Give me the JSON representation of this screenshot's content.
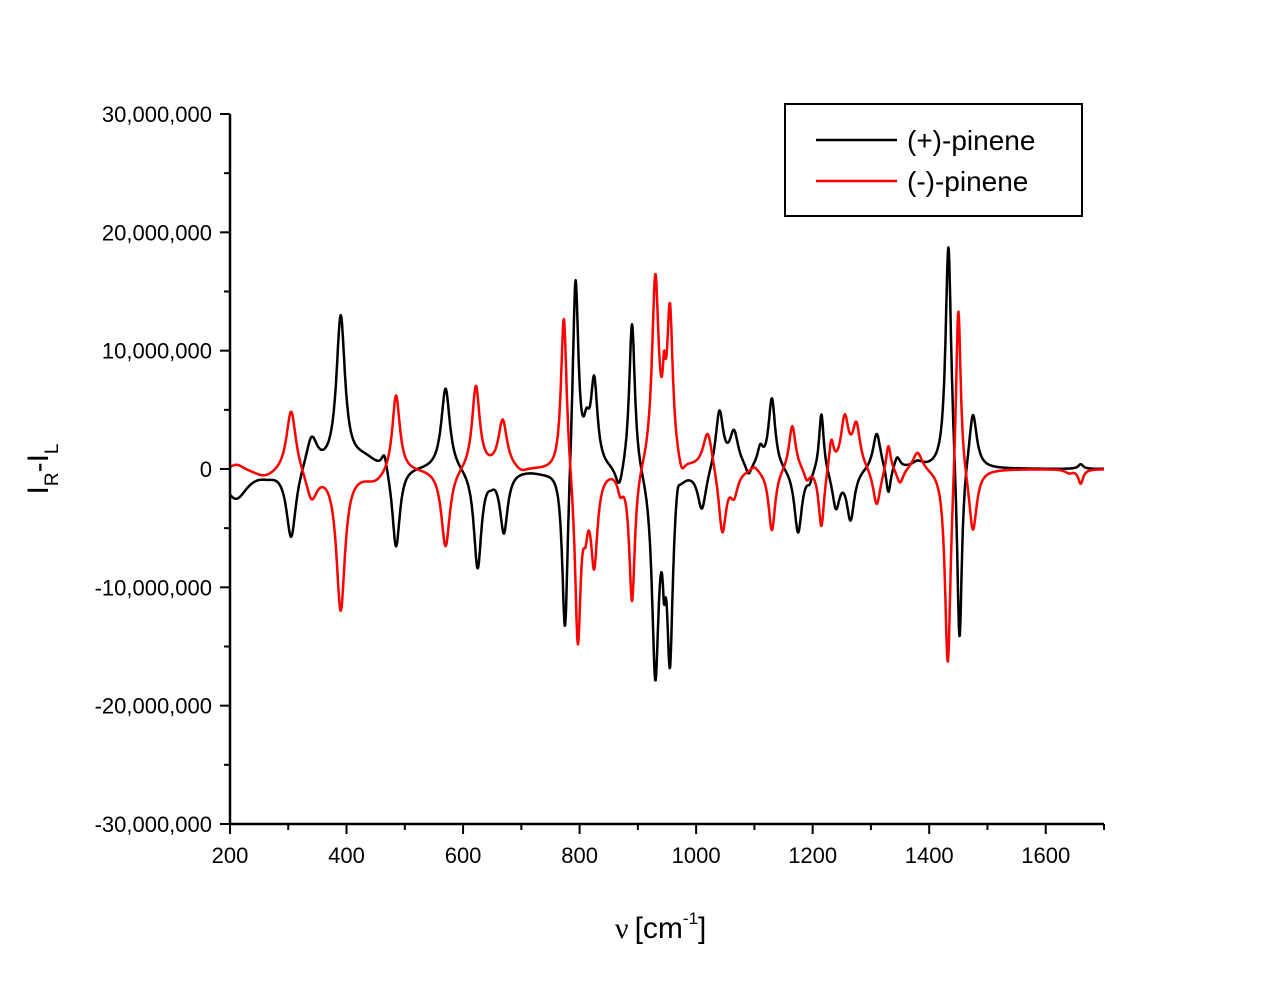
{
  "chart_data": {
    "type": "line",
    "title": "",
    "xlabel": "ν [cm⁻¹]",
    "xlabel_parts": {
      "symbol": "ν",
      "unit_open": "[cm",
      "unit_sup": "-1",
      "unit_close": "]"
    },
    "ylabel": "I_R - I_L",
    "ylabel_parts": {
      "main1": "I",
      "sub1": "R",
      "dash": "-",
      "main2": "I",
      "sub2": "L"
    },
    "xlim": [
      200,
      1700
    ],
    "ylim": [
      -30000000,
      30000000
    ],
    "x_ticks": [
      200,
      400,
      600,
      800,
      1000,
      1200,
      1400,
      1600
    ],
    "x_tick_labels": [
      "200",
      "400",
      "600",
      "800",
      "1000",
      "1200",
      "1400",
      "1600"
    ],
    "y_ticks": [
      30000000,
      20000000,
      10000000,
      0,
      -10000000,
      -20000000,
      -30000000
    ],
    "y_tick_labels": [
      "30,000,000",
      "20,000,000",
      "10,000,000",
      "0",
      "-10,000,000",
      "-20,000,000",
      "-30,000,000"
    ],
    "grid": false,
    "legend_position": "upper right",
    "series": [
      {
        "name": "(+)-pinene",
        "color": "#000000",
        "peaks_cm1_amplitude_width": [
          [
            210,
            -2500000,
            25
          ],
          [
            265,
            -300000,
            15
          ],
          [
            305,
            -6000000,
            10
          ],
          [
            340,
            2800000,
            12
          ],
          [
            390,
            12700000,
            9
          ],
          [
            430,
            900000,
            30
          ],
          [
            465,
            1500000,
            6
          ],
          [
            485,
            -7000000,
            8
          ],
          [
            570,
            7000000,
            9
          ],
          [
            625,
            -8400000,
            8
          ],
          [
            648,
            -400000,
            6
          ],
          [
            670,
            -5200000,
            8
          ],
          [
            740,
            -300000,
            25
          ],
          [
            775,
            -15000000,
            6
          ],
          [
            793,
            17000000,
            6
          ],
          [
            812,
            2500000,
            6
          ],
          [
            825,
            7200000,
            7
          ],
          [
            868,
            -2000000,
            8
          ],
          [
            890,
            13000000,
            6
          ],
          [
            930,
            -17200000,
            7
          ],
          [
            945,
            -4500000,
            3
          ],
          [
            955,
            -15500000,
            6
          ],
          [
            968,
            1500000,
            5
          ],
          [
            1010,
            -3500000,
            9
          ],
          [
            1040,
            5000000,
            8
          ],
          [
            1065,
            3000000,
            9
          ],
          [
            1090,
            -1000000,
            6
          ],
          [
            1110,
            1500000,
            6
          ],
          [
            1130,
            6000000,
            7
          ],
          [
            1175,
            -5500000,
            8
          ],
          [
            1195,
            -800000,
            5
          ],
          [
            1215,
            5200000,
            5
          ],
          [
            1240,
            -3200000,
            8
          ],
          [
            1265,
            -4200000,
            8
          ],
          [
            1310,
            3200000,
            8
          ],
          [
            1330,
            -2500000,
            5
          ],
          [
            1345,
            1000000,
            6
          ],
          [
            1380,
            500000,
            12
          ],
          [
            1433,
            19600000,
            6
          ],
          [
            1452,
            -16500000,
            5
          ],
          [
            1475,
            4900000,
            8
          ],
          [
            1660,
            400000,
            5
          ]
        ]
      },
      {
        "name": "(-)-pinene",
        "color": "#ff0000",
        "peaks_cm1_amplitude_width": [
          [
            212,
            500000,
            15
          ],
          [
            260,
            -700000,
            25
          ],
          [
            305,
            5400000,
            10
          ],
          [
            340,
            -2500000,
            12
          ],
          [
            390,
            -11800000,
            9
          ],
          [
            450,
            -1000000,
            25
          ],
          [
            485,
            6700000,
            8
          ],
          [
            570,
            -6700000,
            9
          ],
          [
            622,
            7100000,
            8
          ],
          [
            668,
            4100000,
            9
          ],
          [
            700,
            -400000,
            12
          ],
          [
            773,
            13700000,
            6
          ],
          [
            797,
            -14800000,
            6
          ],
          [
            810,
            -3000000,
            5
          ],
          [
            825,
            -7700000,
            7
          ],
          [
            870,
            -1500000,
            6
          ],
          [
            890,
            -11500000,
            6
          ],
          [
            930,
            16000000,
            7
          ],
          [
            945,
            4000000,
            3
          ],
          [
            955,
            12800000,
            6
          ],
          [
            975,
            -1300000,
            7
          ],
          [
            1020,
            3400000,
            10
          ],
          [
            1045,
            -5600000,
            8
          ],
          [
            1065,
            -2000000,
            8
          ],
          [
            1100,
            500000,
            8
          ],
          [
            1130,
            -5300000,
            7
          ],
          [
            1165,
            3900000,
            7
          ],
          [
            1190,
            -1000000,
            6
          ],
          [
            1215,
            -5200000,
            6
          ],
          [
            1232,
            2500000,
            5
          ],
          [
            1255,
            4200000,
            8
          ],
          [
            1275,
            3600000,
            8
          ],
          [
            1310,
            -3300000,
            8
          ],
          [
            1330,
            2400000,
            5
          ],
          [
            1350,
            -1300000,
            7
          ],
          [
            1380,
            1600000,
            10
          ],
          [
            1432,
            -17300000,
            6
          ],
          [
            1450,
            15500000,
            5
          ],
          [
            1475,
            -5400000,
            8
          ],
          [
            1640,
            -300000,
            8
          ],
          [
            1660,
            -1200000,
            5
          ]
        ]
      }
    ]
  },
  "legend": {
    "items": [
      {
        "label": "(+)-pinene",
        "color": "#000000"
      },
      {
        "label": "(-)-pinene",
        "color": "#ff0000"
      }
    ]
  }
}
